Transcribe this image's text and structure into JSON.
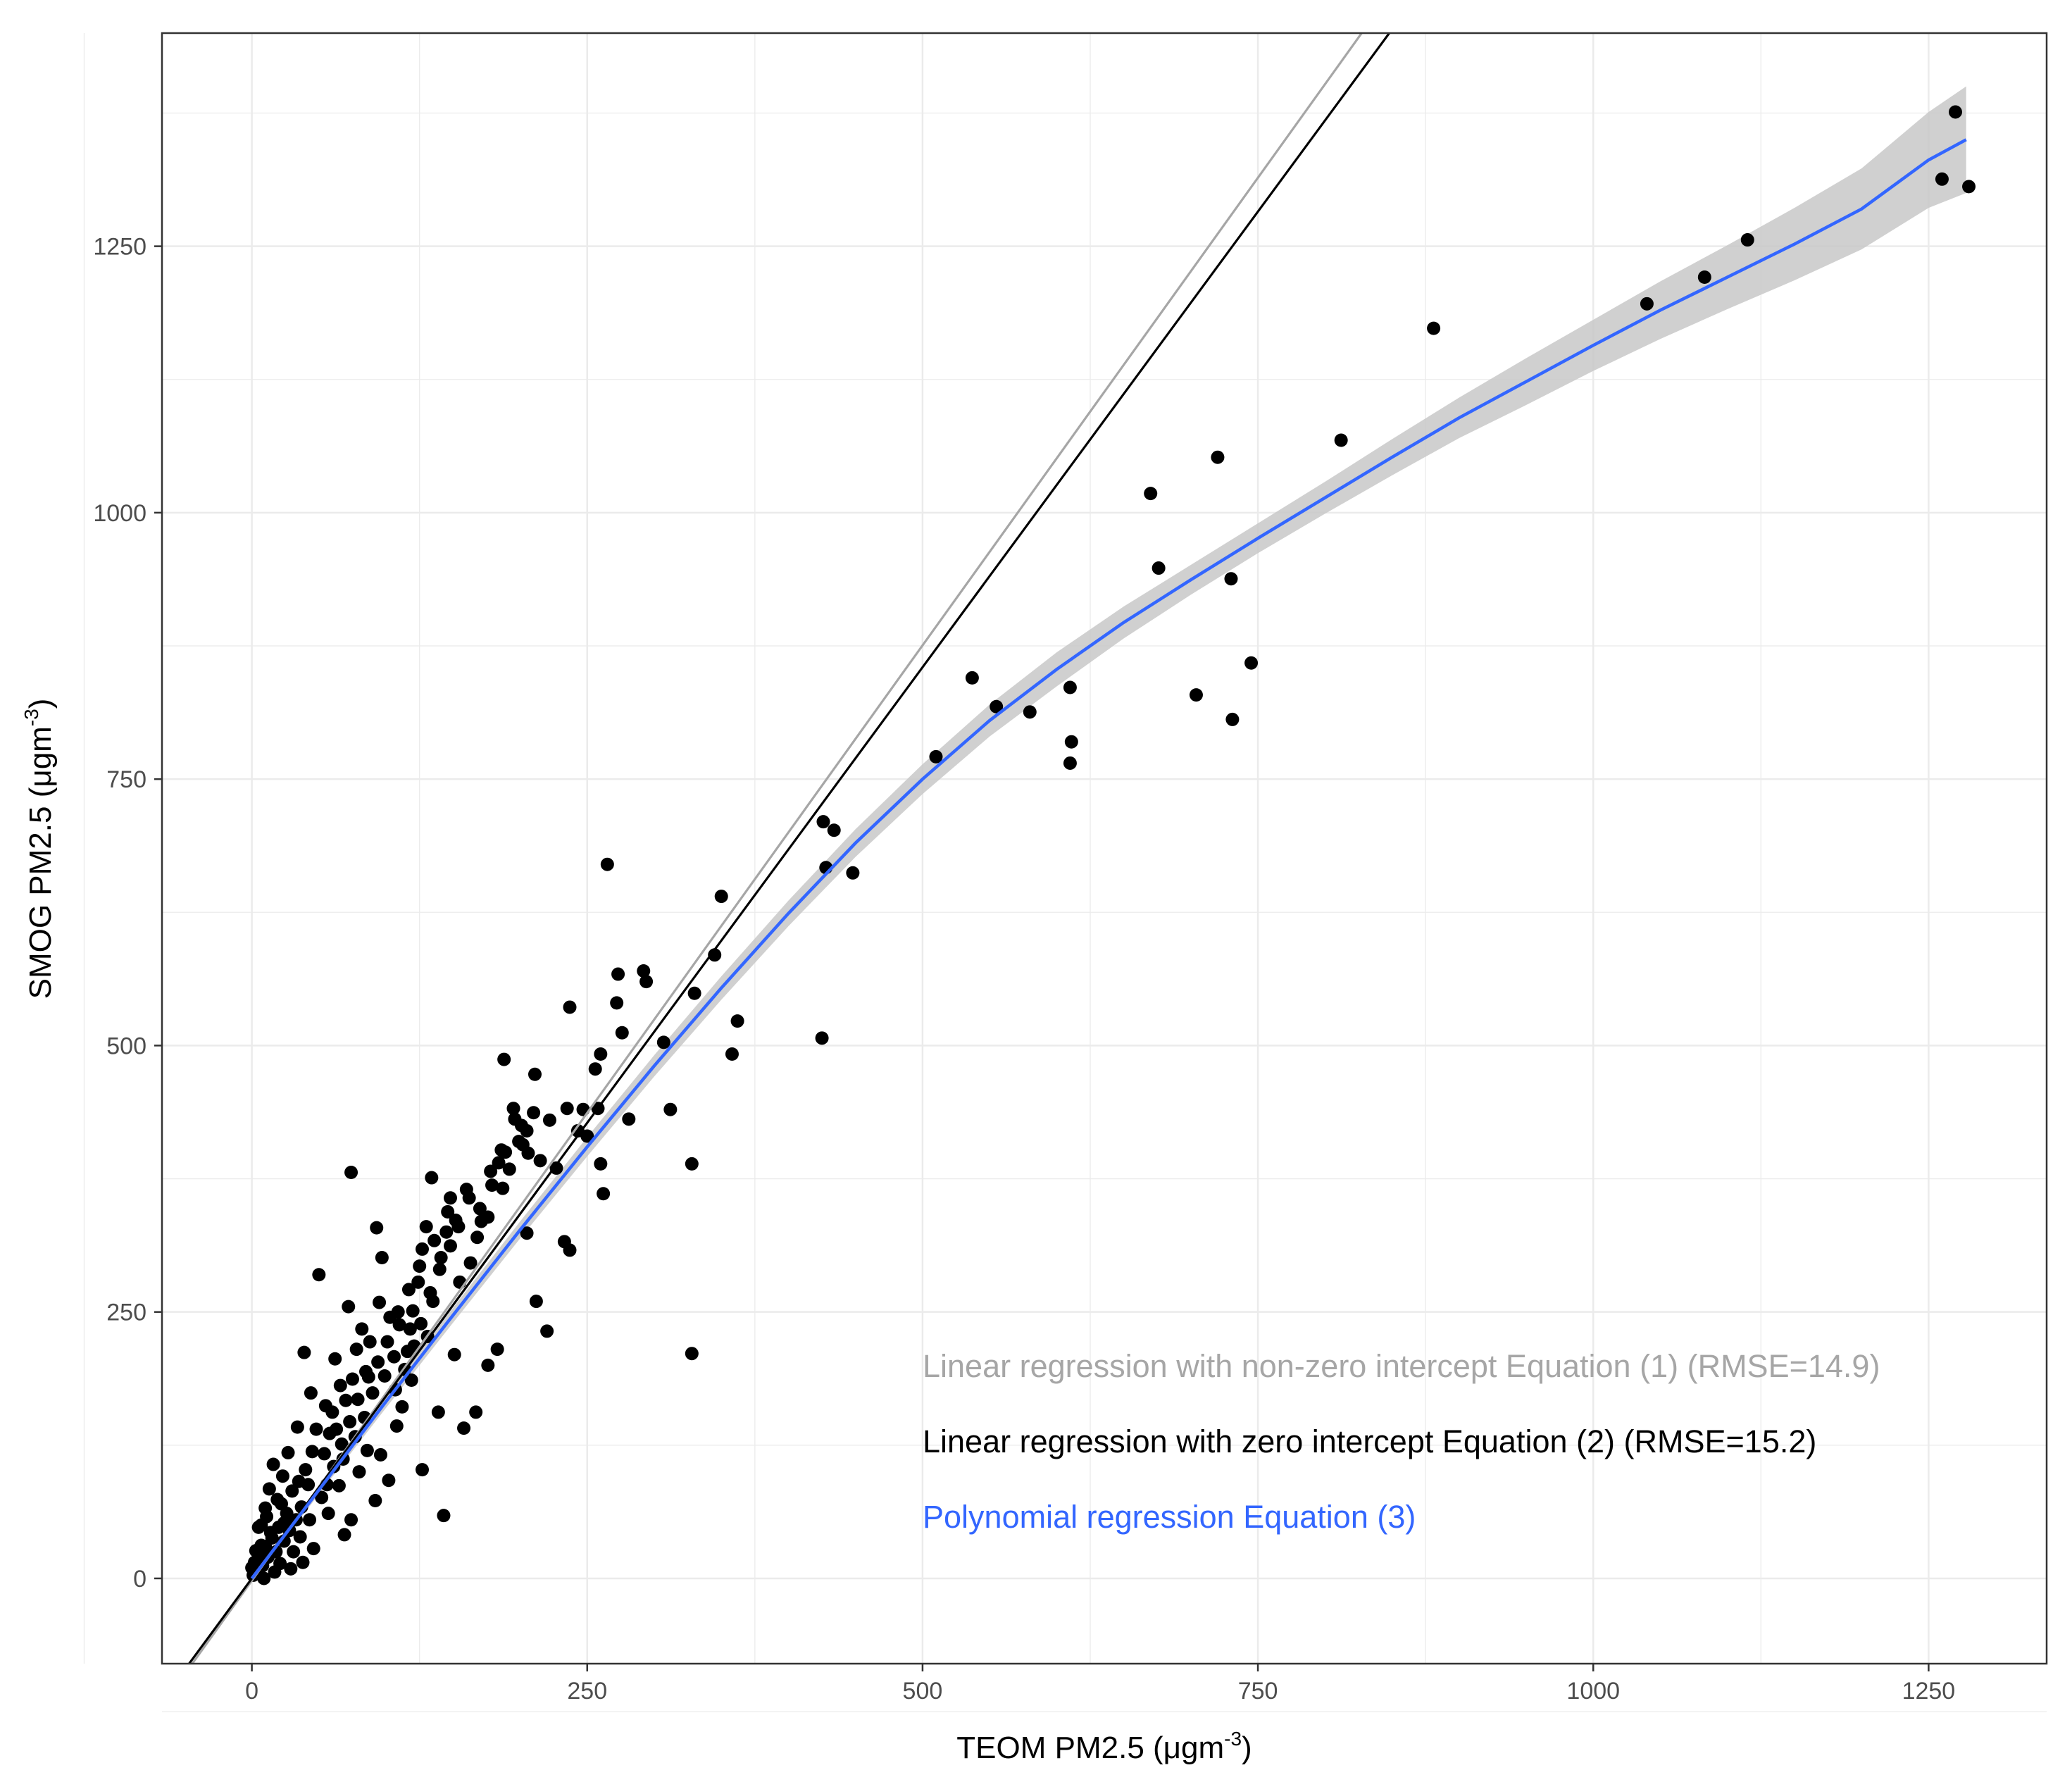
{
  "chart_data": {
    "type": "scatter",
    "title": "",
    "xlabel": "TEOM PM2.5 (μgm",
    "xlabel_sup": "-3",
    "xlabel_close": ")",
    "ylabel": "SMOG PM2.5 (μgm",
    "ylabel_sup": "-3",
    "ylabel_close": ")",
    "xlim": [
      -67,
      1338
    ],
    "ylim": [
      -80,
      1450
    ],
    "x_ticks": [
      0,
      250,
      500,
      750,
      1000,
      1250
    ],
    "y_ticks": [
      0,
      250,
      500,
      750,
      1000,
      1250
    ],
    "x_tick_labels": [
      "0",
      "250",
      "500",
      "750",
      "1000",
      "1250"
    ],
    "y_tick_labels": [
      "0",
      "250",
      "500",
      "750",
      "1000",
      "1250"
    ],
    "grid": true,
    "colors": {
      "points": "#000000",
      "linear_nonzero": "#a6a6a6",
      "linear_zero": "#000000",
      "polynomial": "#3366ff",
      "confidence_band": "#c8c8c8",
      "grid": "#ebebeb",
      "panel_border": "#333333"
    },
    "fit_lines": [
      {
        "label": "linear_nonzero",
        "intercept": -2,
        "slope": 1.755
      },
      {
        "label": "linear_zero",
        "intercept": 0,
        "slope": 1.71
      }
    ],
    "polynomial_fit": {
      "x": [
        0,
        50,
        100,
        150,
        200,
        250,
        300,
        350,
        400,
        450,
        500,
        550,
        600,
        650,
        700,
        750,
        800,
        850,
        900,
        950,
        1000,
        1050,
        1100,
        1150,
        1200,
        1250,
        1278
      ],
      "y": [
        0,
        83,
        166,
        247,
        327,
        405,
        481,
        554,
        624,
        690,
        750,
        805,
        853,
        897,
        937,
        976,
        1014,
        1052,
        1089,
        1123,
        1157,
        1190,
        1221,
        1252,
        1285,
        1331,
        1350
      ],
      "band_halfwidth": [
        3,
        4,
        6,
        7,
        8,
        9,
        10,
        11,
        12,
        13,
        14,
        15,
        16,
        15,
        14,
        14,
        15,
        17,
        19,
        22,
        24,
        27,
        30,
        34,
        38,
        45,
        50
      ]
    },
    "points": [
      [
        1270,
        1376
      ],
      [
        1260,
        1313
      ],
      [
        1280,
        1306
      ],
      [
        1115,
        1256
      ],
      [
        1083,
        1221
      ],
      [
        1040,
        1196
      ],
      [
        881,
        1173
      ],
      [
        812,
        1068
      ],
      [
        720,
        1052
      ],
      [
        670,
        1018
      ],
      [
        676,
        948
      ],
      [
        730,
        938
      ],
      [
        745,
        859
      ],
      [
        704,
        829
      ],
      [
        731,
        806
      ],
      [
        610,
        836
      ],
      [
        611,
        785
      ],
      [
        610,
        765
      ],
      [
        537,
        845
      ],
      [
        555,
        818
      ],
      [
        580,
        813
      ],
      [
        510,
        771
      ],
      [
        426,
        710
      ],
      [
        434,
        702
      ],
      [
        448,
        662
      ],
      [
        428,
        667
      ],
      [
        350,
        640
      ],
      [
        425,
        507
      ],
      [
        362,
        523
      ],
      [
        358,
        492
      ],
      [
        345,
        585
      ],
      [
        330,
        549
      ],
      [
        307,
        503
      ],
      [
        312,
        440
      ],
      [
        294,
        560
      ],
      [
        292,
        570
      ],
      [
        276,
        512
      ],
      [
        281,
        431
      ],
      [
        328,
        389
      ],
      [
        328,
        211
      ],
      [
        265,
        670
      ],
      [
        273,
        567
      ],
      [
        272,
        540
      ],
      [
        260,
        492
      ],
      [
        256,
        478
      ],
      [
        258,
        441
      ],
      [
        262,
        361
      ],
      [
        260,
        389
      ],
      [
        237,
        536
      ],
      [
        235,
        441
      ],
      [
        233,
        316
      ],
      [
        237,
        308
      ],
      [
        222,
        430
      ],
      [
        220,
        232
      ],
      [
        211,
        473
      ],
      [
        210,
        437
      ],
      [
        205,
        420
      ],
      [
        202,
        407
      ],
      [
        196,
        431
      ],
      [
        188,
        487
      ],
      [
        187,
        366
      ],
      [
        184,
        390
      ],
      [
        176,
        339
      ],
      [
        168,
        320
      ],
      [
        160,
        365
      ],
      [
        152,
        336
      ],
      [
        148,
        357
      ],
      [
        145,
        325
      ],
      [
        140,
        290
      ],
      [
        135,
        260
      ],
      [
        134,
        376
      ],
      [
        130,
        330
      ],
      [
        127,
        309
      ],
      [
        124,
        278
      ],
      [
        120,
        251
      ],
      [
        118,
        234
      ],
      [
        116,
        213
      ],
      [
        110,
        238
      ],
      [
        106,
        208
      ],
      [
        103,
        245
      ],
      [
        97,
        301
      ],
      [
        95,
        259
      ],
      [
        93,
        329
      ],
      [
        88,
        222
      ],
      [
        85,
        194
      ],
      [
        82,
        234
      ],
      [
        78,
        215
      ],
      [
        75,
        187
      ],
      [
        74,
        381
      ],
      [
        72,
        255
      ],
      [
        70,
        167
      ],
      [
        66,
        181
      ],
      [
        62,
        206
      ],
      [
        60,
        156
      ],
      [
        58,
        136
      ],
      [
        54,
        117
      ],
      [
        50,
        285
      ],
      [
        48,
        140
      ],
      [
        45,
        119
      ],
      [
        42,
        88
      ],
      [
        40,
        102
      ],
      [
        37,
        67
      ],
      [
        35,
        91
      ],
      [
        33,
        55
      ],
      [
        30,
        82
      ],
      [
        28,
        45
      ],
      [
        26,
        61
      ],
      [
        24,
        35
      ],
      [
        22,
        70
      ],
      [
        20,
        48
      ],
      [
        18,
        25
      ],
      [
        15,
        38
      ],
      [
        12,
        20
      ],
      [
        10,
        30
      ],
      [
        8,
        12
      ],
      [
        6,
        22
      ],
      [
        4,
        8
      ],
      [
        2,
        15
      ],
      [
        1,
        3
      ],
      [
        205,
        324
      ],
      [
        212,
        260
      ],
      [
        183,
        215
      ],
      [
        176,
        200
      ],
      [
        167,
        156
      ],
      [
        158,
        141
      ],
      [
        151,
        210
      ],
      [
        143,
        59
      ],
      [
        139,
        156
      ],
      [
        131,
        227
      ],
      [
        127,
        102
      ],
      [
        119,
        186
      ],
      [
        112,
        161
      ],
      [
        108,
        143
      ],
      [
        102,
        92
      ],
      [
        96,
        116
      ],
      [
        92,
        73
      ],
      [
        86,
        120
      ],
      [
        80,
        100
      ],
      [
        74,
        55
      ],
      [
        69,
        41
      ],
      [
        65,
        87
      ],
      [
        57,
        61
      ],
      [
        52,
        76
      ],
      [
        46,
        28
      ],
      [
        43,
        55
      ],
      [
        38,
        15
      ],
      [
        36,
        39
      ],
      [
        31,
        25
      ],
      [
        29,
        9
      ],
      [
        24,
        52
      ],
      [
        21,
        14
      ],
      [
        17,
        6
      ],
      [
        14,
        43
      ],
      [
        11,
        58
      ],
      [
        9,
        0
      ],
      [
        7,
        31
      ],
      [
        5,
        48
      ],
      [
        3,
        26
      ],
      [
        0,
        10
      ],
      [
        39,
        212
      ],
      [
        44,
        174
      ],
      [
        55,
        162
      ],
      [
        63,
        140
      ],
      [
        68,
        112
      ],
      [
        77,
        133
      ],
      [
        84,
        151
      ],
      [
        90,
        174
      ],
      [
        99,
        190
      ],
      [
        107,
        177
      ],
      [
        114,
        196
      ],
      [
        121,
        218
      ],
      [
        126,
        239
      ],
      [
        133,
        268
      ],
      [
        141,
        301
      ],
      [
        148,
        312
      ],
      [
        155,
        278
      ],
      [
        163,
        296
      ],
      [
        171,
        335
      ],
      [
        179,
        369
      ],
      [
        186,
        402
      ],
      [
        192,
        384
      ],
      [
        199,
        410
      ],
      [
        206,
        399
      ],
      [
        215,
        392
      ],
      [
        227,
        385
      ],
      [
        243,
        420
      ],
      [
        247,
        440
      ],
      [
        250,
        415
      ],
      [
        34,
        142
      ],
      [
        27,
        118
      ],
      [
        23,
        96
      ],
      [
        19,
        74
      ],
      [
        16,
        107
      ],
      [
        13,
        84
      ],
      [
        10,
        66
      ],
      [
        7,
        50
      ],
      [
        56,
        88
      ],
      [
        61,
        105
      ],
      [
        67,
        126
      ],
      [
        73,
        147
      ],
      [
        79,
        168
      ],
      [
        87,
        189
      ],
      [
        94,
        203
      ],
      [
        101,
        222
      ],
      [
        109,
        250
      ],
      [
        117,
        271
      ],
      [
        125,
        293
      ],
      [
        136,
        317
      ],
      [
        146,
        344
      ],
      [
        154,
        330
      ],
      [
        162,
        357
      ],
      [
        170,
        347
      ],
      [
        178,
        382
      ],
      [
        195,
        441
      ],
      [
        201,
        425
      ],
      [
        189,
        400
      ]
    ],
    "legend_entries": [
      {
        "text": "Linear regression with non-zero intercept Equation (1) (RMSE=14.9)",
        "color": "#a6a6a6"
      },
      {
        "text": "Linear regression with zero intercept Equation (2) (RMSE=15.2)",
        "color": "#000000"
      },
      {
        "text": "Polynomial regression Equation (3)",
        "color": "#3366ff"
      }
    ],
    "legend_placement": "bottom-right (inside plot)"
  }
}
